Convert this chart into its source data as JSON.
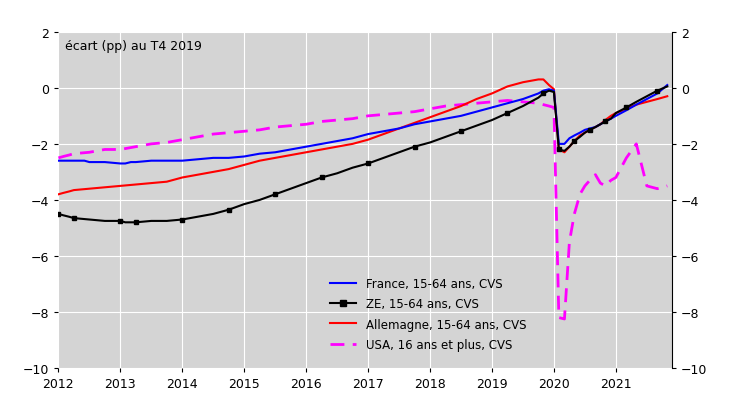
{
  "title": "écart (pp) au T4 2019",
  "ylim": [
    -10,
    2
  ],
  "yticks": [
    -10,
    -8,
    -6,
    -4,
    -2,
    0,
    2
  ],
  "xlim": [
    2012,
    2021.9
  ],
  "xticks": [
    2012,
    2013,
    2014,
    2015,
    2016,
    2017,
    2018,
    2019,
    2020,
    2021
  ],
  "background_color": "#d4d4d4",
  "grid_color": "white",
  "france_color": "#0000ff",
  "ze_color": "#000000",
  "allemagne_color": "#ff0000",
  "usa_color": "#ff00ff",
  "legend_labels": [
    "France, 15-64 ans, CVS",
    "ZE, 15-64 ans, CVS",
    "Allemagne, 15-64 ans, CVS",
    "USA, 16 ans et plus, CVS"
  ],
  "france_data": [
    [
      2012.0,
      -2.6
    ],
    [
      2012.08,
      -2.6
    ],
    [
      2012.17,
      -2.6
    ],
    [
      2012.25,
      -2.6
    ],
    [
      2012.33,
      -2.6
    ],
    [
      2012.42,
      -2.6
    ],
    [
      2012.5,
      -2.65
    ],
    [
      2012.58,
      -2.65
    ],
    [
      2012.67,
      -2.65
    ],
    [
      2012.75,
      -2.65
    ],
    [
      2013.0,
      -2.7
    ],
    [
      2013.08,
      -2.7
    ],
    [
      2013.17,
      -2.65
    ],
    [
      2013.25,
      -2.65
    ],
    [
      2013.5,
      -2.6
    ],
    [
      2013.75,
      -2.6
    ],
    [
      2014.0,
      -2.6
    ],
    [
      2014.25,
      -2.55
    ],
    [
      2014.5,
      -2.5
    ],
    [
      2014.75,
      -2.5
    ],
    [
      2015.0,
      -2.45
    ],
    [
      2015.25,
      -2.35
    ],
    [
      2015.5,
      -2.3
    ],
    [
      2015.75,
      -2.2
    ],
    [
      2016.0,
      -2.1
    ],
    [
      2016.25,
      -2.0
    ],
    [
      2016.5,
      -1.9
    ],
    [
      2016.75,
      -1.8
    ],
    [
      2017.0,
      -1.65
    ],
    [
      2017.25,
      -1.55
    ],
    [
      2017.5,
      -1.45
    ],
    [
      2017.75,
      -1.3
    ],
    [
      2018.0,
      -1.2
    ],
    [
      2018.25,
      -1.1
    ],
    [
      2018.5,
      -1.0
    ],
    [
      2018.75,
      -0.85
    ],
    [
      2019.0,
      -0.7
    ],
    [
      2019.25,
      -0.55
    ],
    [
      2019.5,
      -0.4
    ],
    [
      2019.75,
      -0.2
    ],
    [
      2019.83,
      -0.1
    ],
    [
      2019.92,
      -0.05
    ],
    [
      2020.0,
      -0.1
    ],
    [
      2020.08,
      -2.0
    ],
    [
      2020.17,
      -2.0
    ],
    [
      2020.25,
      -1.8
    ],
    [
      2020.33,
      -1.7
    ],
    [
      2020.42,
      -1.6
    ],
    [
      2020.5,
      -1.5
    ],
    [
      2020.58,
      -1.45
    ],
    [
      2020.67,
      -1.4
    ],
    [
      2020.75,
      -1.3
    ],
    [
      2020.83,
      -1.2
    ],
    [
      2020.92,
      -1.1
    ],
    [
      2021.0,
      -1.0
    ],
    [
      2021.17,
      -0.8
    ],
    [
      2021.33,
      -0.6
    ],
    [
      2021.5,
      -0.4
    ],
    [
      2021.67,
      -0.2
    ],
    [
      2021.83,
      0.1
    ]
  ],
  "ze_data": [
    [
      2012.0,
      -4.5
    ],
    [
      2012.08,
      -4.55
    ],
    [
      2012.17,
      -4.6
    ],
    [
      2012.25,
      -4.65
    ],
    [
      2012.5,
      -4.7
    ],
    [
      2012.75,
      -4.75
    ],
    [
      2013.0,
      -4.75
    ],
    [
      2013.08,
      -4.8
    ],
    [
      2013.17,
      -4.8
    ],
    [
      2013.25,
      -4.8
    ],
    [
      2013.5,
      -4.75
    ],
    [
      2013.75,
      -4.75
    ],
    [
      2014.0,
      -4.7
    ],
    [
      2014.25,
      -4.6
    ],
    [
      2014.5,
      -4.5
    ],
    [
      2014.75,
      -4.35
    ],
    [
      2015.0,
      -4.15
    ],
    [
      2015.25,
      -4.0
    ],
    [
      2015.5,
      -3.8
    ],
    [
      2015.75,
      -3.6
    ],
    [
      2016.0,
      -3.4
    ],
    [
      2016.25,
      -3.2
    ],
    [
      2016.5,
      -3.05
    ],
    [
      2016.75,
      -2.85
    ],
    [
      2017.0,
      -2.7
    ],
    [
      2017.25,
      -2.5
    ],
    [
      2017.5,
      -2.3
    ],
    [
      2017.75,
      -2.1
    ],
    [
      2018.0,
      -1.95
    ],
    [
      2018.25,
      -1.75
    ],
    [
      2018.5,
      -1.55
    ],
    [
      2018.75,
      -1.35
    ],
    [
      2019.0,
      -1.15
    ],
    [
      2019.25,
      -0.9
    ],
    [
      2019.5,
      -0.65
    ],
    [
      2019.75,
      -0.35
    ],
    [
      2019.83,
      -0.2
    ],
    [
      2019.92,
      -0.1
    ],
    [
      2020.0,
      -0.15
    ],
    [
      2020.08,
      -2.2
    ],
    [
      2020.17,
      -2.25
    ],
    [
      2020.25,
      -2.1
    ],
    [
      2020.33,
      -1.9
    ],
    [
      2020.42,
      -1.75
    ],
    [
      2020.5,
      -1.6
    ],
    [
      2020.58,
      -1.5
    ],
    [
      2020.67,
      -1.4
    ],
    [
      2020.75,
      -1.3
    ],
    [
      2020.83,
      -1.2
    ],
    [
      2020.92,
      -1.1
    ],
    [
      2021.0,
      -0.9
    ],
    [
      2021.17,
      -0.7
    ],
    [
      2021.33,
      -0.5
    ],
    [
      2021.5,
      -0.3
    ],
    [
      2021.67,
      -0.1
    ],
    [
      2021.83,
      0.05
    ]
  ],
  "allemagne_data": [
    [
      2012.0,
      -3.8
    ],
    [
      2012.08,
      -3.75
    ],
    [
      2012.17,
      -3.7
    ],
    [
      2012.25,
      -3.65
    ],
    [
      2012.5,
      -3.6
    ],
    [
      2012.75,
      -3.55
    ],
    [
      2013.0,
      -3.5
    ],
    [
      2013.25,
      -3.45
    ],
    [
      2013.5,
      -3.4
    ],
    [
      2013.75,
      -3.35
    ],
    [
      2014.0,
      -3.2
    ],
    [
      2014.25,
      -3.1
    ],
    [
      2014.5,
      -3.0
    ],
    [
      2014.75,
      -2.9
    ],
    [
      2015.0,
      -2.75
    ],
    [
      2015.25,
      -2.6
    ],
    [
      2015.5,
      -2.5
    ],
    [
      2015.75,
      -2.4
    ],
    [
      2016.0,
      -2.3
    ],
    [
      2016.25,
      -2.2
    ],
    [
      2016.5,
      -2.1
    ],
    [
      2016.75,
      -2.0
    ],
    [
      2017.0,
      -1.85
    ],
    [
      2017.25,
      -1.65
    ],
    [
      2017.5,
      -1.45
    ],
    [
      2017.75,
      -1.25
    ],
    [
      2018.0,
      -1.05
    ],
    [
      2018.25,
      -0.85
    ],
    [
      2018.5,
      -0.65
    ],
    [
      2018.75,
      -0.4
    ],
    [
      2019.0,
      -0.2
    ],
    [
      2019.25,
      0.05
    ],
    [
      2019.5,
      0.2
    ],
    [
      2019.75,
      0.3
    ],
    [
      2019.83,
      0.3
    ],
    [
      2019.92,
      0.1
    ],
    [
      2020.0,
      -0.05
    ],
    [
      2020.08,
      -2.2
    ],
    [
      2020.17,
      -2.3
    ],
    [
      2020.25,
      -2.1
    ],
    [
      2020.33,
      -1.9
    ],
    [
      2020.42,
      -1.7
    ],
    [
      2020.5,
      -1.6
    ],
    [
      2020.58,
      -1.5
    ],
    [
      2020.67,
      -1.4
    ],
    [
      2020.75,
      -1.3
    ],
    [
      2020.83,
      -1.15
    ],
    [
      2020.92,
      -1.0
    ],
    [
      2021.0,
      -0.9
    ],
    [
      2021.17,
      -0.75
    ],
    [
      2021.33,
      -0.6
    ],
    [
      2021.5,
      -0.5
    ],
    [
      2021.67,
      -0.4
    ],
    [
      2021.83,
      -0.3
    ]
  ],
  "usa_data": [
    [
      2012.0,
      -2.5
    ],
    [
      2012.08,
      -2.45
    ],
    [
      2012.17,
      -2.4
    ],
    [
      2012.25,
      -2.35
    ],
    [
      2012.5,
      -2.3
    ],
    [
      2012.75,
      -2.2
    ],
    [
      2013.0,
      -2.2
    ],
    [
      2013.25,
      -2.1
    ],
    [
      2013.5,
      -2.0
    ],
    [
      2013.75,
      -1.95
    ],
    [
      2014.0,
      -1.85
    ],
    [
      2014.25,
      -1.75
    ],
    [
      2014.5,
      -1.65
    ],
    [
      2014.75,
      -1.6
    ],
    [
      2015.0,
      -1.55
    ],
    [
      2015.25,
      -1.5
    ],
    [
      2015.5,
      -1.4
    ],
    [
      2015.75,
      -1.35
    ],
    [
      2016.0,
      -1.3
    ],
    [
      2016.25,
      -1.2
    ],
    [
      2016.5,
      -1.15
    ],
    [
      2016.75,
      -1.1
    ],
    [
      2017.0,
      -1.0
    ],
    [
      2017.25,
      -0.95
    ],
    [
      2017.5,
      -0.9
    ],
    [
      2017.75,
      -0.85
    ],
    [
      2018.0,
      -0.75
    ],
    [
      2018.25,
      -0.65
    ],
    [
      2018.5,
      -0.6
    ],
    [
      2018.75,
      -0.55
    ],
    [
      2019.0,
      -0.5
    ],
    [
      2019.25,
      -0.45
    ],
    [
      2019.5,
      -0.5
    ],
    [
      2019.75,
      -0.55
    ],
    [
      2019.83,
      -0.6
    ],
    [
      2019.92,
      -0.65
    ],
    [
      2020.0,
      -0.7
    ],
    [
      2020.08,
      -8.2
    ],
    [
      2020.17,
      -8.25
    ],
    [
      2020.25,
      -5.5
    ],
    [
      2020.33,
      -4.5
    ],
    [
      2020.42,
      -3.8
    ],
    [
      2020.5,
      -3.5
    ],
    [
      2020.58,
      -3.3
    ],
    [
      2020.67,
      -3.1
    ],
    [
      2020.75,
      -3.4
    ],
    [
      2020.83,
      -3.5
    ],
    [
      2020.92,
      -3.3
    ],
    [
      2021.0,
      -3.2
    ],
    [
      2021.17,
      -2.5
    ],
    [
      2021.33,
      -2.0
    ],
    [
      2021.5,
      -3.5
    ],
    [
      2021.67,
      -3.6
    ],
    [
      2021.83,
      -3.5
    ]
  ]
}
